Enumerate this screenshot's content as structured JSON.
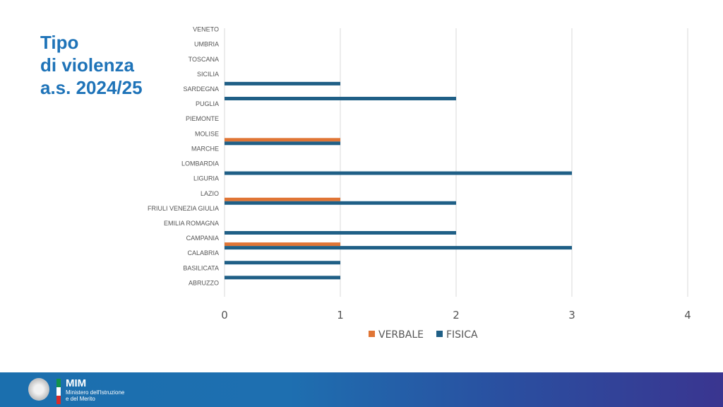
{
  "title": {
    "line1": "Tipo",
    "line2": "di violenza",
    "line3": "a.s. 2024/25"
  },
  "footer": {
    "brand": "MIM",
    "sub1": "Ministero dell'Istruzione",
    "sub2": "e del Merito"
  },
  "chart_data": {
    "type": "bar",
    "orientation": "horizontal",
    "categories": [
      "VENETO",
      "UMBRIA",
      "TOSCANA",
      "SICILIA",
      "SARDEGNA",
      "PUGLIA",
      "PIEMONTE",
      "MOLISE",
      "MARCHE",
      "LOMBARDIA",
      "LIGURIA",
      "LAZIO",
      "FRIULI VENEZIA GIULIA",
      "EMILIA ROMAGNA",
      "CAMPANIA",
      "CALABRIA",
      "BASILICATA",
      "ABRUZZO"
    ],
    "series": [
      {
        "name": "VERBALE",
        "color": "#e07535",
        "values": [
          0,
          0,
          0,
          0,
          0,
          0,
          0,
          1,
          0,
          0,
          0,
          1,
          0,
          0,
          1,
          0,
          0,
          0
        ]
      },
      {
        "name": "FISICA",
        "color": "#1f5f86",
        "values": [
          0,
          0,
          0,
          1,
          2,
          0,
          0,
          1,
          0,
          3,
          0,
          2,
          0,
          2,
          3,
          1,
          1,
          0
        ]
      }
    ],
    "xlim": [
      0,
      4
    ],
    "xticks": [
      "0",
      "1",
      "2",
      "3",
      "4"
    ],
    "grid": true,
    "legend": "bottom"
  }
}
